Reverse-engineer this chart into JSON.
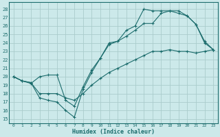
{
  "xlabel": "Humidex (Indice chaleur)",
  "bg_color": "#cce9ea",
  "grid_color": "#aacccc",
  "line_color": "#1a6b6b",
  "xlim": [
    -0.5,
    23.5
  ],
  "ylim": [
    14.5,
    28.8
  ],
  "xticks": [
    0,
    1,
    2,
    3,
    4,
    5,
    6,
    7,
    8,
    9,
    10,
    11,
    12,
    13,
    14,
    15,
    16,
    17,
    18,
    19,
    20,
    21,
    22,
    23
  ],
  "yticks": [
    15,
    16,
    17,
    18,
    19,
    20,
    21,
    22,
    23,
    24,
    25,
    26,
    27,
    28
  ],
  "line1_x": [
    0,
    1,
    2,
    3,
    4,
    5,
    6,
    7,
    8,
    9,
    10,
    11,
    12,
    13,
    14,
    15,
    16,
    17,
    18,
    19,
    20,
    21,
    22,
    23
  ],
  "line1_y": [
    20.0,
    19.5,
    19.3,
    17.5,
    17.2,
    17.0,
    16.0,
    15.2,
    18.5,
    20.5,
    22.2,
    23.8,
    24.2,
    25.5,
    26.0,
    28.0,
    27.8,
    27.8,
    27.8,
    27.8,
    27.2,
    26.2,
    24.0,
    23.2
  ],
  "line2_x": [
    0,
    1,
    2,
    3,
    4,
    5,
    6,
    7,
    8,
    9,
    10,
    11,
    12,
    13,
    14,
    15,
    16,
    17,
    18,
    19,
    20,
    21,
    22,
    23
  ],
  "line2_y": [
    20.0,
    19.5,
    19.2,
    20.0,
    20.2,
    20.2,
    17.2,
    16.5,
    18.8,
    20.8,
    22.2,
    24.0,
    24.2,
    24.8,
    25.5,
    26.3,
    26.3,
    27.5,
    27.8,
    27.5,
    27.2,
    26.2,
    24.2,
    23.2
  ],
  "line3_x": [
    0,
    1,
    2,
    3,
    4,
    5,
    6,
    7,
    8,
    9,
    10,
    11,
    12,
    13,
    14,
    15,
    16,
    17,
    18,
    19,
    20,
    21,
    22,
    23
  ],
  "line3_y": [
    20.0,
    19.5,
    19.3,
    18.0,
    18.0,
    18.0,
    17.5,
    17.2,
    18.0,
    19.0,
    19.8,
    20.5,
    21.0,
    21.5,
    22.0,
    22.5,
    23.0,
    23.0,
    23.2,
    23.0,
    23.0,
    22.8,
    23.0,
    23.2
  ]
}
